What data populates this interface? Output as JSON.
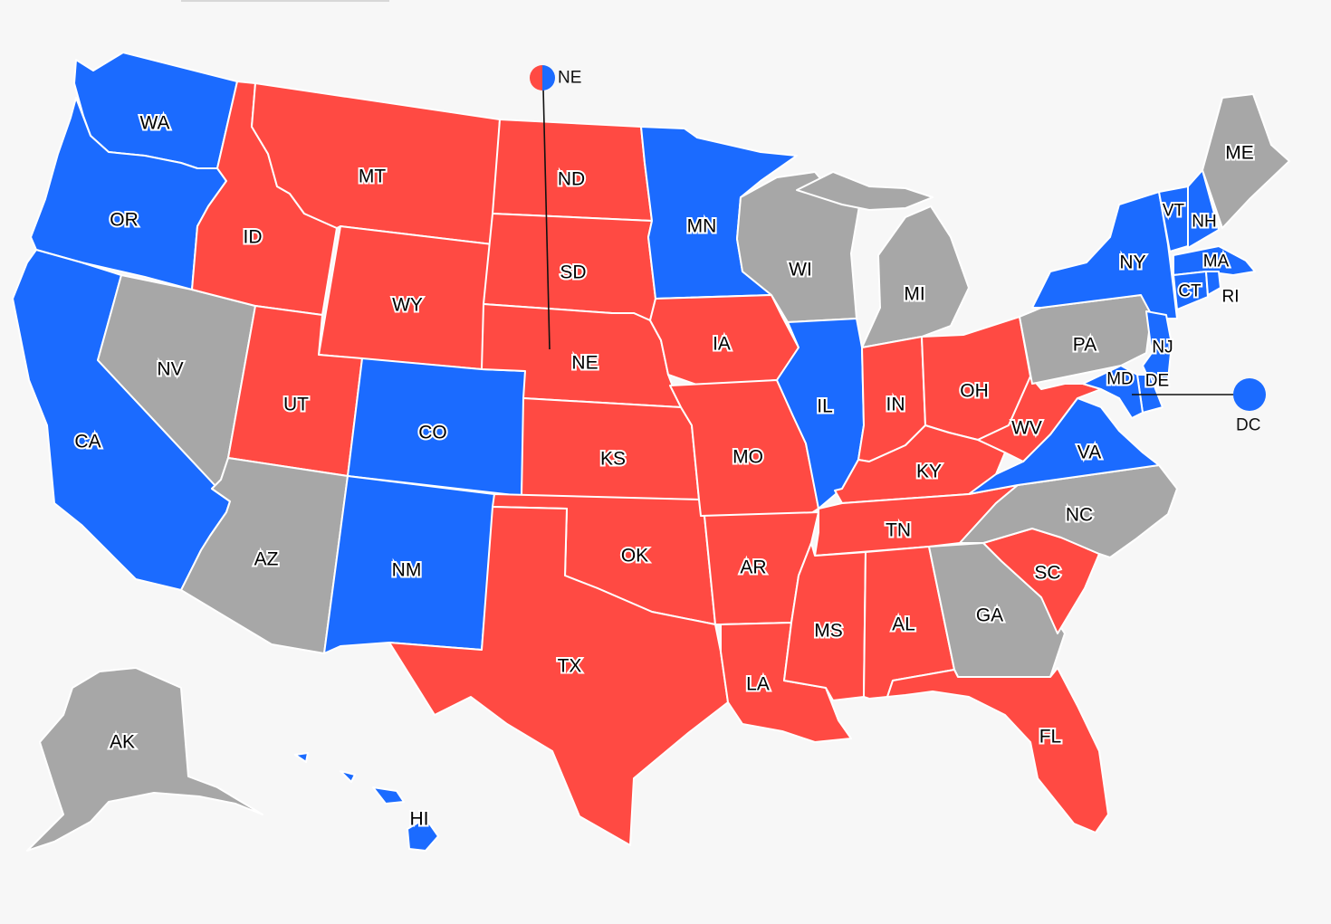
{
  "colors": {
    "blue": "#1b6bff",
    "red": "#ff4a43",
    "gray": "#a7a7a7",
    "background": "#f7f7f7"
  },
  "states": {
    "WA": {
      "label": "WA",
      "status": "blue"
    },
    "OR": {
      "label": "OR",
      "status": "blue"
    },
    "CA": {
      "label": "CA",
      "status": "blue"
    },
    "NV": {
      "label": "NV",
      "status": "gray"
    },
    "ID": {
      "label": "ID",
      "status": "red"
    },
    "MT": {
      "label": "MT",
      "status": "red"
    },
    "WY": {
      "label": "WY",
      "status": "red"
    },
    "UT": {
      "label": "UT",
      "status": "red"
    },
    "AZ": {
      "label": "AZ",
      "status": "gray"
    },
    "CO": {
      "label": "CO",
      "status": "blue"
    },
    "NM": {
      "label": "NM",
      "status": "blue"
    },
    "ND": {
      "label": "ND",
      "status": "red"
    },
    "SD": {
      "label": "SD",
      "status": "red"
    },
    "NE": {
      "label": "NE",
      "status": "red"
    },
    "KS": {
      "label": "KS",
      "status": "red"
    },
    "OK": {
      "label": "OK",
      "status": "red"
    },
    "TX": {
      "label": "TX",
      "status": "red"
    },
    "MN": {
      "label": "MN",
      "status": "blue"
    },
    "IA": {
      "label": "IA",
      "status": "red"
    },
    "MO": {
      "label": "MO",
      "status": "red"
    },
    "AR": {
      "label": "AR",
      "status": "red"
    },
    "LA": {
      "label": "LA",
      "status": "red"
    },
    "WI": {
      "label": "WI",
      "status": "gray"
    },
    "IL": {
      "label": "IL",
      "status": "blue"
    },
    "MI": {
      "label": "MI",
      "status": "gray"
    },
    "IN": {
      "label": "IN",
      "status": "red"
    },
    "OH": {
      "label": "OH",
      "status": "red"
    },
    "KY": {
      "label": "KY",
      "status": "red"
    },
    "TN": {
      "label": "TN",
      "status": "red"
    },
    "MS": {
      "label": "MS",
      "status": "red"
    },
    "AL": {
      "label": "AL",
      "status": "red"
    },
    "GA": {
      "label": "GA",
      "status": "gray"
    },
    "FL": {
      "label": "FL",
      "status": "red"
    },
    "SC": {
      "label": "SC",
      "status": "red"
    },
    "NC": {
      "label": "NC",
      "status": "gray"
    },
    "VA": {
      "label": "VA",
      "status": "blue"
    },
    "WV": {
      "label": "WV",
      "status": "red"
    },
    "PA": {
      "label": "PA",
      "status": "gray"
    },
    "NY": {
      "label": "NY",
      "status": "blue"
    },
    "VT": {
      "label": "VT",
      "status": "blue"
    },
    "NH": {
      "label": "NH",
      "status": "blue"
    },
    "ME": {
      "label": "ME",
      "status": "gray"
    },
    "MA": {
      "label": "MA",
      "status": "blue"
    },
    "CT": {
      "label": "CT",
      "status": "blue"
    },
    "RI": {
      "label": "RI",
      "status": "blue"
    },
    "NJ": {
      "label": "NJ",
      "status": "blue"
    },
    "DE": {
      "label": "DE",
      "status": "blue"
    },
    "MD": {
      "label": "MD",
      "status": "blue"
    },
    "AK": {
      "label": "AK",
      "status": "gray"
    },
    "HI": {
      "label": "HI",
      "status": "blue"
    }
  },
  "callouts": {
    "ne": {
      "label": "NE",
      "split": [
        "red",
        "blue"
      ]
    },
    "dc": {
      "label": "DC",
      "status": "blue"
    }
  }
}
